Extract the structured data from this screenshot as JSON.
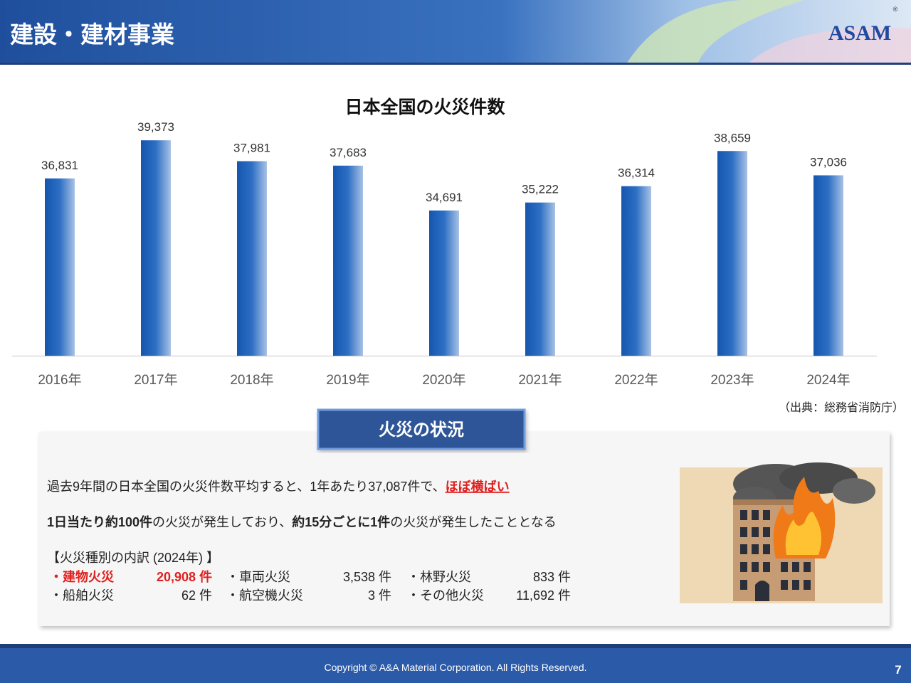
{
  "header": {
    "title": "建設・建材事業",
    "logo": "ASAM",
    "registered": "®"
  },
  "chart_data": {
    "type": "bar",
    "title": "日本全国の火災件数",
    "categories": [
      "2016年",
      "2017年",
      "2018年",
      "2019年",
      "2020年",
      "2021年",
      "2022年",
      "2023年",
      "2024年"
    ],
    "values": [
      36831,
      39373,
      37981,
      37683,
      34691,
      35222,
      36314,
      38659,
      37036
    ],
    "value_labels": [
      "36,831",
      "39,373",
      "37,981",
      "37,683",
      "34,691",
      "35,222",
      "36,314",
      "38,659",
      "37,036"
    ],
    "color": "#1a5fb4",
    "ylim": [
      25000,
      40000
    ]
  },
  "source": "（出典：総務省消防庁）",
  "summary": {
    "title": "火災の状況",
    "lines": [
      [
        "過去9年間の日本全国の火災件数平均すると、1年あたり37,087件で、",
        "ほぼ横ばい"
      ],
      [
        "1日当たり約100件",
        "の火災が発生しており、",
        "約15分ごとに1件",
        "の火災が発生したこととなる"
      ]
    ],
    "breakdown": {
      "heading": "【火災種別の内訳 (2024年) 】",
      "items": [
        {
          "name": "・建物火災",
          "count": "20,908 件"
        },
        {
          "name": "・車両火災",
          "count": "3,538 件"
        },
        {
          "name": "・林野火災",
          "count": "833 件"
        },
        {
          "name": "・船舶火災",
          "count": "62 件"
        },
        {
          "name": "・航空機火災",
          "count": "3 件"
        },
        {
          "name": "・その他火災",
          "count": "11,692 件"
        }
      ]
    }
  },
  "footer": {
    "copyright": "Copyright © A&A Material Corporation. All Rights Reserved.",
    "page": 7
  }
}
